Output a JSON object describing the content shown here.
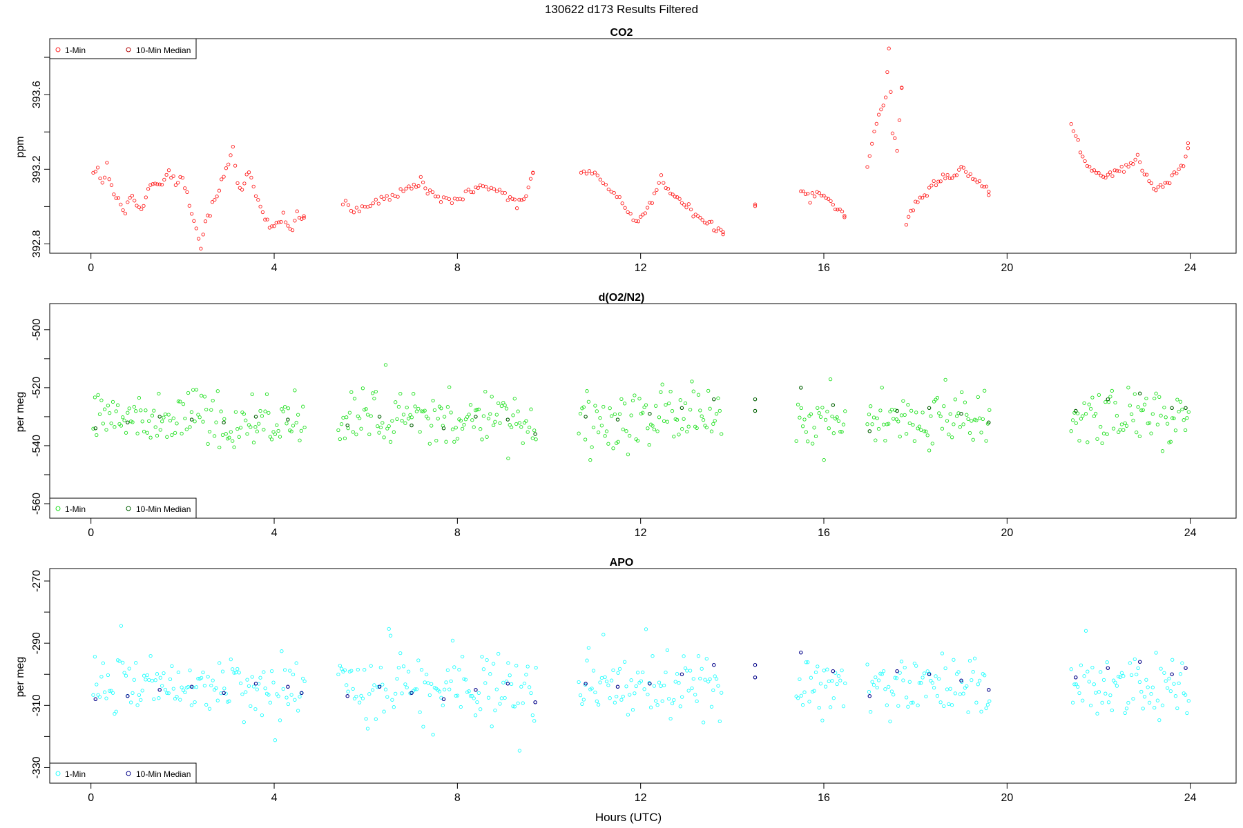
{
  "page_title": "130622   d173   Results Filtered",
  "xlabel": "Hours (UTC)",
  "chart_data": [
    {
      "type": "scatter",
      "title": "CO2",
      "ylabel": "ppm",
      "xlim": [
        -0.9,
        25.0
      ],
      "ylim": [
        392.75,
        393.9
      ],
      "xticks": [
        0,
        4,
        8,
        12,
        16,
        20,
        24
      ],
      "yticks": [
        392.8,
        393.2,
        393.6
      ],
      "yticklabels": [
        "392.8",
        "393.2",
        "393.6"
      ],
      "legend": {
        "placement": "top-left",
        "entries": [
          "1-Min",
          "10-Min Median"
        ]
      },
      "colors": {
        "one_min": "#ff2020",
        "median": "#b00000"
      },
      "series": [
        {
          "name": "1-Min",
          "points": [
            [
              0.05,
              393.19
            ],
            [
              0.15,
              393.19
            ],
            [
              0.25,
              393.12
            ],
            [
              0.35,
              393.22
            ],
            [
              0.45,
              393.1
            ],
            [
              0.55,
              393.04
            ],
            [
              0.65,
              393.02
            ],
            [
              0.75,
              392.98
            ],
            [
              0.85,
              393.06
            ],
            [
              0.95,
              393.03
            ],
            [
              1.1,
              392.99
            ],
            [
              1.25,
              393.08
            ],
            [
              1.4,
              393.14
            ],
            [
              1.55,
              393.11
            ],
            [
              1.7,
              393.19
            ],
            [
              1.85,
              393.13
            ],
            [
              2.0,
              393.16
            ],
            [
              2.1,
              393.06
            ],
            [
              2.2,
              392.98
            ],
            [
              2.3,
              392.9
            ],
            [
              2.4,
              392.78
            ],
            [
              2.5,
              392.93
            ],
            [
              2.6,
              392.97
            ],
            [
              2.7,
              393.04
            ],
            [
              2.8,
              393.1
            ],
            [
              2.9,
              393.16
            ],
            [
              3.0,
              393.22
            ],
            [
              3.1,
              393.33
            ],
            [
              3.2,
              393.14
            ],
            [
              3.3,
              393.08
            ],
            [
              3.45,
              393.19
            ],
            [
              3.6,
              393.04
            ],
            [
              3.75,
              392.98
            ],
            [
              3.9,
              392.88
            ],
            [
              4.05,
              392.9
            ],
            [
              4.2,
              392.95
            ],
            [
              4.35,
              392.86
            ],
            [
              4.5,
              392.96
            ],
            [
              4.65,
              392.93
            ]
          ]
        },
        {
          "name": "1-Min",
          "points": [
            [
              5.5,
              393.02
            ],
            [
              5.8,
              392.98
            ],
            [
              6.1,
              393.01
            ],
            [
              6.4,
              393.04
            ],
            [
              6.7,
              393.07
            ],
            [
              7.0,
              393.1
            ],
            [
              7.2,
              393.14
            ],
            [
              7.4,
              393.07
            ],
            [
              7.7,
              393.03
            ],
            [
              8.0,
              393.04
            ],
            [
              8.3,
              393.08
            ],
            [
              8.5,
              393.1
            ],
            [
              8.8,
              393.11
            ],
            [
              9.1,
              393.05
            ],
            [
              9.3,
              393.01
            ],
            [
              9.5,
              393.06
            ],
            [
              9.65,
              393.17
            ]
          ]
        },
        {
          "name": "1-Min",
          "points": [
            [
              10.7,
              393.19
            ],
            [
              11.0,
              393.18
            ],
            [
              11.3,
              393.11
            ],
            [
              11.6,
              393.02
            ],
            [
              11.9,
              392.91
            ],
            [
              12.1,
              392.95
            ],
            [
              12.3,
              393.06
            ],
            [
              12.45,
              393.15
            ],
            [
              12.6,
              393.09
            ],
            [
              12.8,
              393.06
            ],
            [
              13.0,
              393.01
            ],
            [
              13.2,
              392.95
            ],
            [
              13.4,
              392.93
            ],
            [
              13.6,
              392.89
            ],
            [
              13.8,
              392.86
            ]
          ]
        },
        {
          "name": "1-Min",
          "points": [
            [
              14.5,
              393.02
            ]
          ]
        },
        {
          "name": "1-Min",
          "points": [
            [
              15.5,
              393.09
            ],
            [
              15.7,
              393.04
            ],
            [
              15.85,
              393.08
            ],
            [
              16.0,
              393.06
            ],
            [
              16.15,
              393.02
            ],
            [
              16.3,
              392.98
            ],
            [
              16.45,
              392.95
            ]
          ]
        },
        {
          "name": "1-Min",
          "points": [
            [
              16.95,
              393.22
            ],
            [
              17.05,
              393.35
            ],
            [
              17.15,
              393.45
            ],
            [
              17.25,
              393.52
            ],
            [
              17.35,
              393.6
            ],
            [
              17.42,
              393.86
            ],
            [
              17.5,
              393.4
            ],
            [
              17.6,
              393.3
            ],
            [
              17.7,
              393.65
            ]
          ]
        },
        {
          "name": "1-Min",
          "points": [
            [
              17.8,
              392.91
            ],
            [
              18.0,
              393.02
            ],
            [
              18.2,
              393.05
            ],
            [
              18.4,
              393.12
            ],
            [
              18.6,
              393.16
            ],
            [
              18.8,
              393.14
            ],
            [
              19.0,
              393.2
            ],
            [
              19.2,
              393.16
            ],
            [
              19.4,
              393.12
            ],
            [
              19.6,
              393.08
            ]
          ]
        },
        {
          "name": "1-Min",
          "points": [
            [
              21.4,
              393.45
            ],
            [
              21.5,
              393.38
            ],
            [
              21.6,
              393.31
            ],
            [
              21.75,
              393.23
            ],
            [
              21.9,
              393.19
            ],
            [
              22.1,
              393.17
            ],
            [
              22.3,
              393.18
            ],
            [
              22.5,
              393.2
            ],
            [
              22.7,
              393.22
            ],
            [
              22.85,
              393.26
            ],
            [
              23.0,
              393.18
            ],
            [
              23.15,
              393.12
            ],
            [
              23.3,
              393.1
            ],
            [
              23.5,
              393.12
            ],
            [
              23.7,
              393.18
            ],
            [
              23.85,
              393.22
            ],
            [
              23.95,
              393.32
            ]
          ]
        }
      ]
    },
    {
      "type": "scatter",
      "title": "d(O2/N2)",
      "ylabel": "per meg",
      "xlim": [
        -0.9,
        25.0
      ],
      "ylim": [
        -565,
        -491
      ],
      "xticks": [
        0,
        4,
        8,
        12,
        16,
        20,
        24
      ],
      "yticks": [
        -560,
        -540,
        -520,
        -500
      ],
      "yticklabels": [
        "-560",
        "-540",
        "-520",
        "-500"
      ],
      "legend": {
        "placement": "bottom-left",
        "entries": [
          "1-Min",
          "10-Min Median"
        ]
      },
      "colors": {
        "one_min": "#20e020",
        "median": "#006000"
      },
      "series": [
        {
          "name": "1-Min",
          "segments": [
            [
              0.05,
              4.7
            ],
            [
              5.4,
              9.75
            ],
            [
              10.65,
              13.8
            ],
            [
              15.4,
              16.5
            ],
            [
              16.95,
              19.65
            ],
            [
              21.4,
              24.0
            ]
          ],
          "center": -531,
          "spread": 7
        },
        {
          "name": "10-Min Median",
          "points": [
            [
              0.1,
              -534
            ],
            [
              0.8,
              -532
            ],
            [
              1.5,
              -530
            ],
            [
              2.2,
              -531
            ],
            [
              2.9,
              -532
            ],
            [
              3.6,
              -530
            ],
            [
              4.3,
              -531
            ],
            [
              5.6,
              -533
            ],
            [
              6.3,
              -530
            ],
            [
              7.0,
              -533
            ],
            [
              7.7,
              -534
            ],
            [
              8.4,
              -530
            ],
            [
              9.1,
              -531
            ],
            [
              9.7,
              -536
            ],
            [
              10.8,
              -530
            ],
            [
              11.5,
              -531
            ],
            [
              12.2,
              -529
            ],
            [
              12.9,
              -527
            ],
            [
              13.6,
              -524
            ],
            [
              14.5,
              -524
            ],
            [
              14.5,
              -528
            ],
            [
              15.5,
              -520
            ],
            [
              16.2,
              -526
            ],
            [
              17.0,
              -535
            ],
            [
              17.6,
              -528
            ],
            [
              18.3,
              -527
            ],
            [
              19.0,
              -529
            ],
            [
              19.6,
              -532
            ],
            [
              21.5,
              -528
            ],
            [
              22.2,
              -524
            ],
            [
              22.9,
              -522
            ],
            [
              23.6,
              -527
            ],
            [
              23.9,
              -527
            ]
          ]
        }
      ]
    },
    {
      "type": "scatter",
      "title": "APO",
      "ylabel": "per meg",
      "xlim": [
        -0.9,
        25.0
      ],
      "ylim": [
        -335,
        -266
      ],
      "xticks": [
        0,
        4,
        8,
        12,
        16,
        20,
        24
      ],
      "yticks": [
        -330,
        -310,
        -290,
        -270
      ],
      "yticklabels": [
        "-330",
        "-310",
        "-290",
        "-270"
      ],
      "legend": {
        "placement": "bottom-left",
        "entries": [
          "1-Min",
          "10-Min Median"
        ]
      },
      "colors": {
        "one_min": "#20ffff",
        "median": "#000088"
      },
      "series": [
        {
          "name": "1-Min",
          "segments": [
            [
              0.05,
              4.7
            ],
            [
              5.4,
              9.75
            ],
            [
              10.65,
              13.8
            ],
            [
              15.4,
              16.5
            ],
            [
              16.95,
              19.65
            ],
            [
              21.4,
              24.0
            ]
          ],
          "center": -304,
          "spread": 7
        },
        {
          "name": "10-Min Median",
          "points": [
            [
              0.1,
              -308
            ],
            [
              0.8,
              -307
            ],
            [
              1.5,
              -305
            ],
            [
              2.2,
              -304
            ],
            [
              2.9,
              -306
            ],
            [
              3.6,
              -303
            ],
            [
              4.3,
              -304
            ],
            [
              4.6,
              -306
            ],
            [
              5.6,
              -307
            ],
            [
              6.3,
              -304
            ],
            [
              7.0,
              -306
            ],
            [
              7.7,
              -308
            ],
            [
              8.4,
              -305
            ],
            [
              9.1,
              -303
            ],
            [
              9.7,
              -309
            ],
            [
              10.8,
              -303
            ],
            [
              11.5,
              -304
            ],
            [
              12.2,
              -303
            ],
            [
              12.9,
              -300
            ],
            [
              13.6,
              -297
            ],
            [
              14.5,
              -297
            ],
            [
              14.5,
              -301
            ],
            [
              15.5,
              -293
            ],
            [
              16.2,
              -299
            ],
            [
              17.0,
              -307
            ],
            [
              17.6,
              -299
            ],
            [
              18.3,
              -300
            ],
            [
              19.0,
              -302
            ],
            [
              19.6,
              -305
            ],
            [
              21.5,
              -301
            ],
            [
              22.2,
              -298
            ],
            [
              22.9,
              -296
            ],
            [
              23.6,
              -300
            ],
            [
              23.9,
              -298
            ]
          ]
        }
      ]
    }
  ]
}
